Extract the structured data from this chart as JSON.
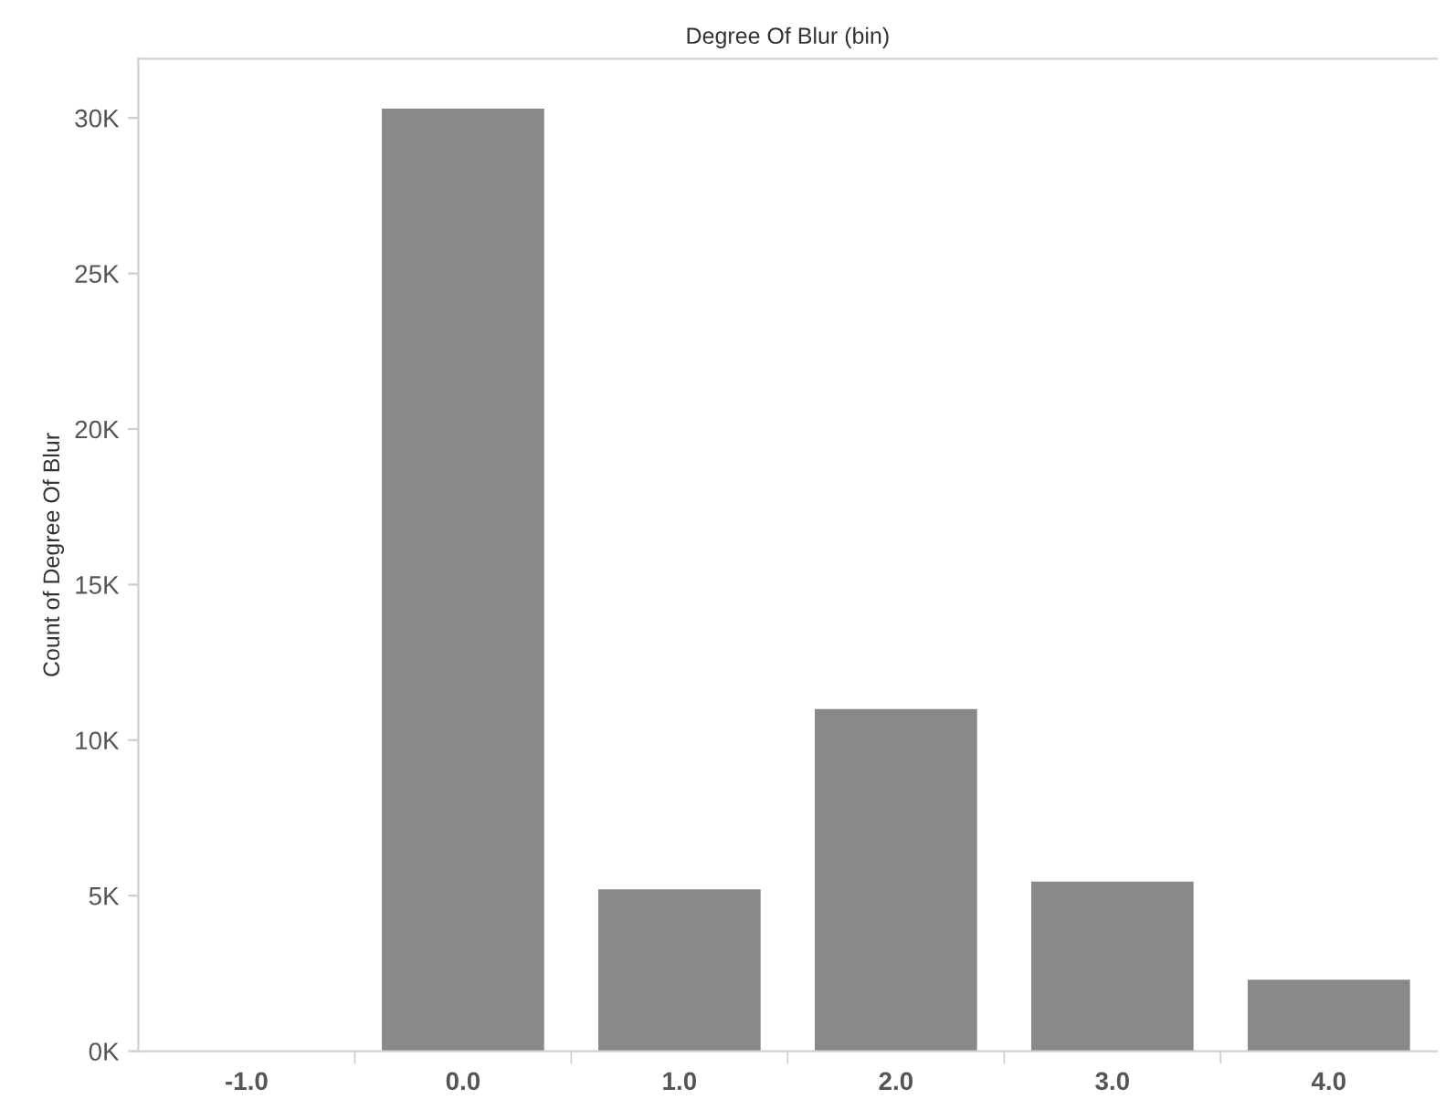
{
  "chart_data": {
    "type": "bar",
    "xlabel": "Degree Of Blur (bin)",
    "ylabel": "Count of Degree Of Blur",
    "categories": [
      "-1.0",
      "0.0",
      "1.0",
      "2.0",
      "3.0",
      "4.0"
    ],
    "values": [
      0,
      30300,
      5200,
      11000,
      5450,
      2300
    ],
    "color": "#898989",
    "ylim": [
      0,
      31900
    ],
    "yticks": [
      {
        "value": 0,
        "label": "0K"
      },
      {
        "value": 5000,
        "label": "5K"
      },
      {
        "value": 10000,
        "label": "10K"
      },
      {
        "value": 15000,
        "label": "15K"
      },
      {
        "value": 20000,
        "label": "20K"
      },
      {
        "value": 25000,
        "label": "25K"
      },
      {
        "value": 30000,
        "label": "30K"
      }
    ],
    "grid": false,
    "legend": false
  }
}
